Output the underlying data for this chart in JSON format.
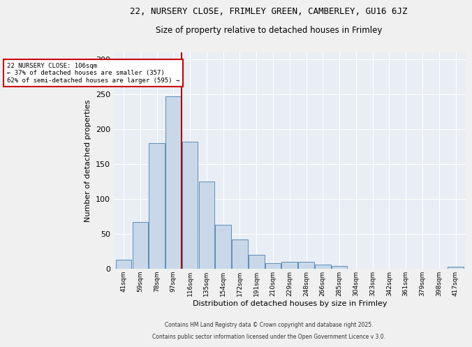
{
  "title1": "22, NURSERY CLOSE, FRIMLEY GREEN, CAMBERLEY, GU16 6JZ",
  "title2": "Size of property relative to detached houses in Frimley",
  "xlabel": "Distribution of detached houses by size in Frimley",
  "ylabel": "Number of detached properties",
  "categories": [
    "41sqm",
    "59sqm",
    "78sqm",
    "97sqm",
    "116sqm",
    "135sqm",
    "154sqm",
    "172sqm",
    "191sqm",
    "210sqm",
    "229sqm",
    "248sqm",
    "266sqm",
    "285sqm",
    "304sqm",
    "323sqm",
    "342sqm",
    "361sqm",
    "379sqm",
    "398sqm",
    "417sqm"
  ],
  "values": [
    13,
    67,
    180,
    247,
    182,
    125,
    63,
    42,
    20,
    8,
    10,
    10,
    6,
    4,
    0,
    0,
    0,
    0,
    0,
    0,
    3
  ],
  "bar_color": "#c8d8e8",
  "bar_edge_color": "#5b8db8",
  "ylim": [
    0,
    310
  ],
  "yticks": [
    0,
    50,
    100,
    150,
    200,
    250,
    300
  ],
  "background_color": "#e8eef4",
  "fig_background": "#f0f0f0",
  "annotation_line1": "22 NURSERY CLOSE: 106sqm",
  "annotation_line2": "← 37% of detached houses are smaller (357)",
  "annotation_line3": "62% of semi-detached houses are larger (595) →",
  "footer1": "Contains HM Land Registry data © Crown copyright and database right 2025.",
  "footer2": "Contains public sector information licensed under the Open Government Licence v 3.0."
}
